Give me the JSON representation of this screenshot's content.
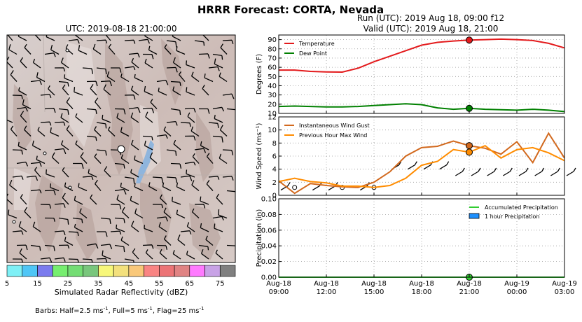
{
  "figure": {
    "title": "HRRR Forecast: CORTA, Nevada",
    "map_title": "UTC: 2019-08-18 21:00:00",
    "run_line": "Run (UTC): 2019 Aug 18, 09:00 f12",
    "valid_line": "Valid (UTC): 2019 Aug 18, 21:00",
    "colorbar_label": "Simulated Radar Reflectivity (dBZ)",
    "colorbar_ticks": [
      "5",
      "15",
      "25",
      "35",
      "45",
      "55",
      "65",
      "75"
    ],
    "colorbar_colors": [
      "#7ef0f6",
      "#4fc6f6",
      "#7b7bee",
      "#76ee6f",
      "#74dd74",
      "#79c67c",
      "#f7f77a",
      "#f3e07c",
      "#f9c87a",
      "#f98483",
      "#ec7476",
      "#e08383",
      "#ff7aff",
      "#c8a2e6",
      "#808080"
    ],
    "barbs_note_parts": [
      "Barbs: Half=2.5 ms",
      "-1",
      ", Full=5 ms",
      "-1",
      ", Flag=25 ms",
      "-1"
    ]
  },
  "x_tick_labels": [
    [
      "Aug-18",
      "09:00"
    ],
    [
      "Aug-18",
      "12:00"
    ],
    [
      "Aug-18",
      "15:00"
    ],
    [
      "Aug-18",
      "18:00"
    ],
    [
      "Aug-18",
      "21:00"
    ],
    [
      "Aug-19",
      "00:00"
    ],
    [
      "Aug-19",
      "03:00"
    ]
  ],
  "chart_data": [
    {
      "type": "line",
      "x_hours_utc": [
        9,
        10,
        11,
        12,
        13,
        14,
        15,
        16,
        17,
        18,
        19,
        20,
        21,
        22,
        23,
        24,
        25,
        26,
        27
      ],
      "ylabel": "Degrees (F)",
      "ylim": [
        10,
        95
      ],
      "yticks": [
        "10",
        "20",
        "30",
        "40",
        "50",
        "60",
        "70",
        "80",
        "90"
      ],
      "series": [
        {
          "name": "Temperature",
          "color": "#e31a1c",
          "values": [
            57,
            57,
            55.5,
            55,
            54.8,
            59,
            66,
            72,
            78,
            84,
            87,
            88.5,
            89.5,
            90,
            90.5,
            90,
            89,
            86,
            81
          ]
        },
        {
          "name": "Dew Point",
          "color": "#008000",
          "values": [
            17.5,
            18,
            17.5,
            17,
            17,
            17.5,
            18.5,
            19.5,
            20.5,
            19.5,
            16,
            14.5,
            15.5,
            14.5,
            14,
            13.5,
            14.5,
            13.5,
            12
          ]
        }
      ],
      "marker": {
        "x": 21,
        "values": [
          89.5,
          15.5
        ]
      },
      "grid": true,
      "legend": "top-left"
    },
    {
      "type": "line",
      "x_hours_utc": [
        9,
        10,
        11,
        12,
        13,
        14,
        15,
        16,
        17,
        18,
        19,
        20,
        21,
        22,
        23,
        24,
        25,
        26,
        27
      ],
      "ylabel": "Wind Speed (ms⁻¹)",
      "ylim": [
        0,
        12
      ],
      "yticks": [
        "0",
        "2",
        "4",
        "6",
        "8",
        "10",
        "12"
      ],
      "series": [
        {
          "name": "Instantaneous Wind Gust",
          "color": "#d2691e",
          "values": [
            2.2,
            0.3,
            1.8,
            1.5,
            1.3,
            1.2,
            2,
            3.6,
            6,
            7.3,
            7.5,
            8.3,
            7.6,
            7.2,
            6.3,
            8.2,
            5,
            9.5,
            5.7
          ]
        },
        {
          "name": "Previous Hour Max Wind",
          "color": "#ff8c00",
          "values": [
            2.1,
            2.6,
            2.1,
            1.9,
            1.4,
            1.4,
            1.2,
            1.5,
            2.6,
            4.6,
            5.2,
            7,
            6.6,
            7.6,
            5.7,
            7,
            7.3,
            6.5,
            5.3
          ]
        }
      ],
      "marker": {
        "x": 21,
        "values": [
          7.6,
          6.6
        ]
      },
      "calm_hours": [
        10,
        13,
        15
      ],
      "grid": true,
      "legend": "top-left"
    },
    {
      "type": "area",
      "x_hours_utc": [
        9,
        10,
        11,
        12,
        13,
        14,
        15,
        16,
        17,
        18,
        19,
        20,
        21,
        22,
        23,
        24,
        25,
        26,
        27
      ],
      "ylabel": "Precipitation (in)",
      "ylim": [
        0,
        0.1
      ],
      "yticks": [
        "0.00",
        "0.02",
        "0.04",
        "0.06",
        "0.08",
        "0.10"
      ],
      "series": [
        {
          "name": "Accumulated Precipitation",
          "color": "#32cd32",
          "values": [
            0,
            0,
            0,
            0,
            0,
            0,
            0,
            0,
            0,
            0,
            0,
            0,
            0,
            0,
            0,
            0,
            0,
            0,
            0
          ]
        },
        {
          "name": "1 hour Precipitation",
          "color": "#1e90ff",
          "values": [
            0,
            0,
            0,
            0,
            0,
            0,
            0,
            0,
            0,
            0,
            0,
            0,
            0,
            0,
            0,
            0,
            0,
            0,
            0
          ]
        }
      ],
      "marker": {
        "x": 21,
        "values": [
          0
        ]
      },
      "grid": true,
      "legend": "top-right"
    }
  ]
}
